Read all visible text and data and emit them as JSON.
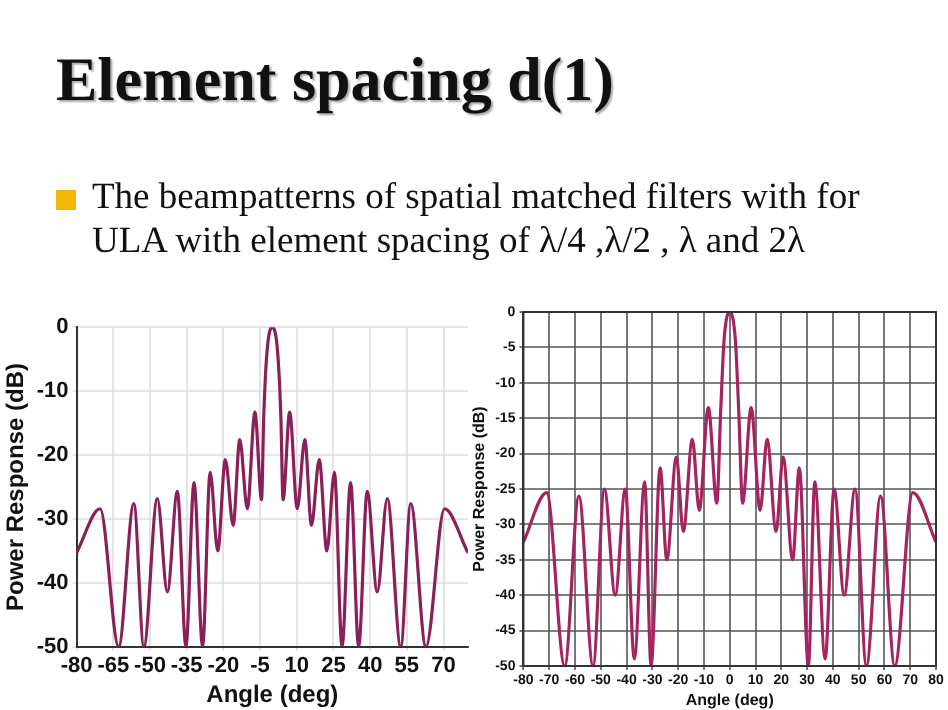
{
  "chart_data": [
    {
      "type": "line",
      "title": "Element spacing d(1)",
      "subtitle": "The beampatterns of spatial matched filters with for ULA with element spacing of λ/4 ,λ/2 , λ and 2λ",
      "xlabel": "Angle (deg)",
      "ylabel": "Power Response (dB)",
      "xlim": [
        -80,
        80
      ],
      "ylim": [
        -50,
        0
      ],
      "xticks": [
        -80,
        -65,
        -50,
        -35,
        -20,
        -5,
        10,
        25,
        40,
        55,
        70
      ],
      "yticks": [
        -50,
        -40,
        -30,
        -20,
        -10,
        0
      ],
      "grid": true,
      "x": [
        -80,
        -70.4,
        -62.8,
        -56.6,
        -52.5,
        -47,
        -42.9,
        -38.8,
        -35.3,
        -32,
        -28.5,
        -25.4,
        -22.3,
        -19.2,
        -16,
        -13.3,
        -10.2,
        -7.1,
        -4.4,
        -3.5,
        -2.2,
        0,
        2.2,
        3.5,
        4.4,
        7.1,
        10.2,
        13.3,
        16,
        19.2,
        22.3,
        25.4,
        28.5,
        32,
        35.3,
        38.8,
        42.9,
        47,
        52.5,
        56.6,
        62.8,
        70.4,
        80
      ],
      "series": [
        {
          "color": "#8a2058",
          "values": [
            -35.3,
            -28.4,
            -50,
            -27.6,
            -50,
            -26.8,
            -41.4,
            -25.7,
            -50,
            -24.3,
            -50,
            -22.7,
            -35,
            -20.7,
            -31,
            -17.6,
            -28.4,
            -13.3,
            -27,
            -14,
            -4,
            0,
            -4,
            -14,
            -27,
            -13.3,
            -28.4,
            -17.6,
            -31,
            -20.7,
            -35,
            -22.7,
            -50,
            -24.3,
            -50,
            -25.7,
            -41.4,
            -26.8,
            -50,
            -27.6,
            -50,
            -28.4,
            -35.3
          ]
        }
      ]
    },
    {
      "type": "line",
      "xlabel": "Angle (deg)",
      "ylabel": "Power Response (dB)",
      "xlim": [
        -80,
        80
      ],
      "ylim": [
        -50,
        0
      ],
      "xticks": [
        -80,
        -70,
        -60,
        -50,
        -40,
        -30,
        -20,
        -10,
        0,
        10,
        20,
        30,
        40,
        50,
        60,
        70,
        80
      ],
      "yticks": [
        -50,
        -45,
        -40,
        -35,
        -30,
        -25,
        -20,
        -15,
        -10,
        -5,
        0
      ],
      "grid": true,
      "x": [
        -80,
        -71,
        -64,
        -58.5,
        -53,
        -48.6,
        -44.4,
        -40.5,
        -37,
        -33,
        -30.5,
        -27,
        -24.4,
        -20.7,
        -18,
        -14.5,
        -11.8,
        -8.3,
        -5,
        -3.5,
        -2.2,
        0,
        2.2,
        3.5,
        5,
        8.3,
        11.8,
        14.5,
        18,
        20.7,
        24.4,
        27,
        30.5,
        33,
        37,
        40.5,
        44.4,
        48.6,
        53,
        58.5,
        64,
        71,
        80
      ],
      "series": [
        {
          "color": "#a3245e",
          "values": [
            -32.5,
            -25.5,
            -50,
            -26,
            -50,
            -25,
            -40,
            -25,
            -49,
            -24,
            -50,
            -22,
            -35,
            -20.5,
            -31,
            -18,
            -28,
            -13.5,
            -27,
            -14,
            -4,
            0,
            -4,
            -14,
            -27,
            -13.5,
            -28,
            -18,
            -31,
            -20.5,
            -35,
            -22,
            -50,
            -24,
            -49,
            -25,
            -40,
            -25,
            -50,
            -26,
            -50,
            -25.5,
            -32.5
          ]
        }
      ]
    }
  ]
}
